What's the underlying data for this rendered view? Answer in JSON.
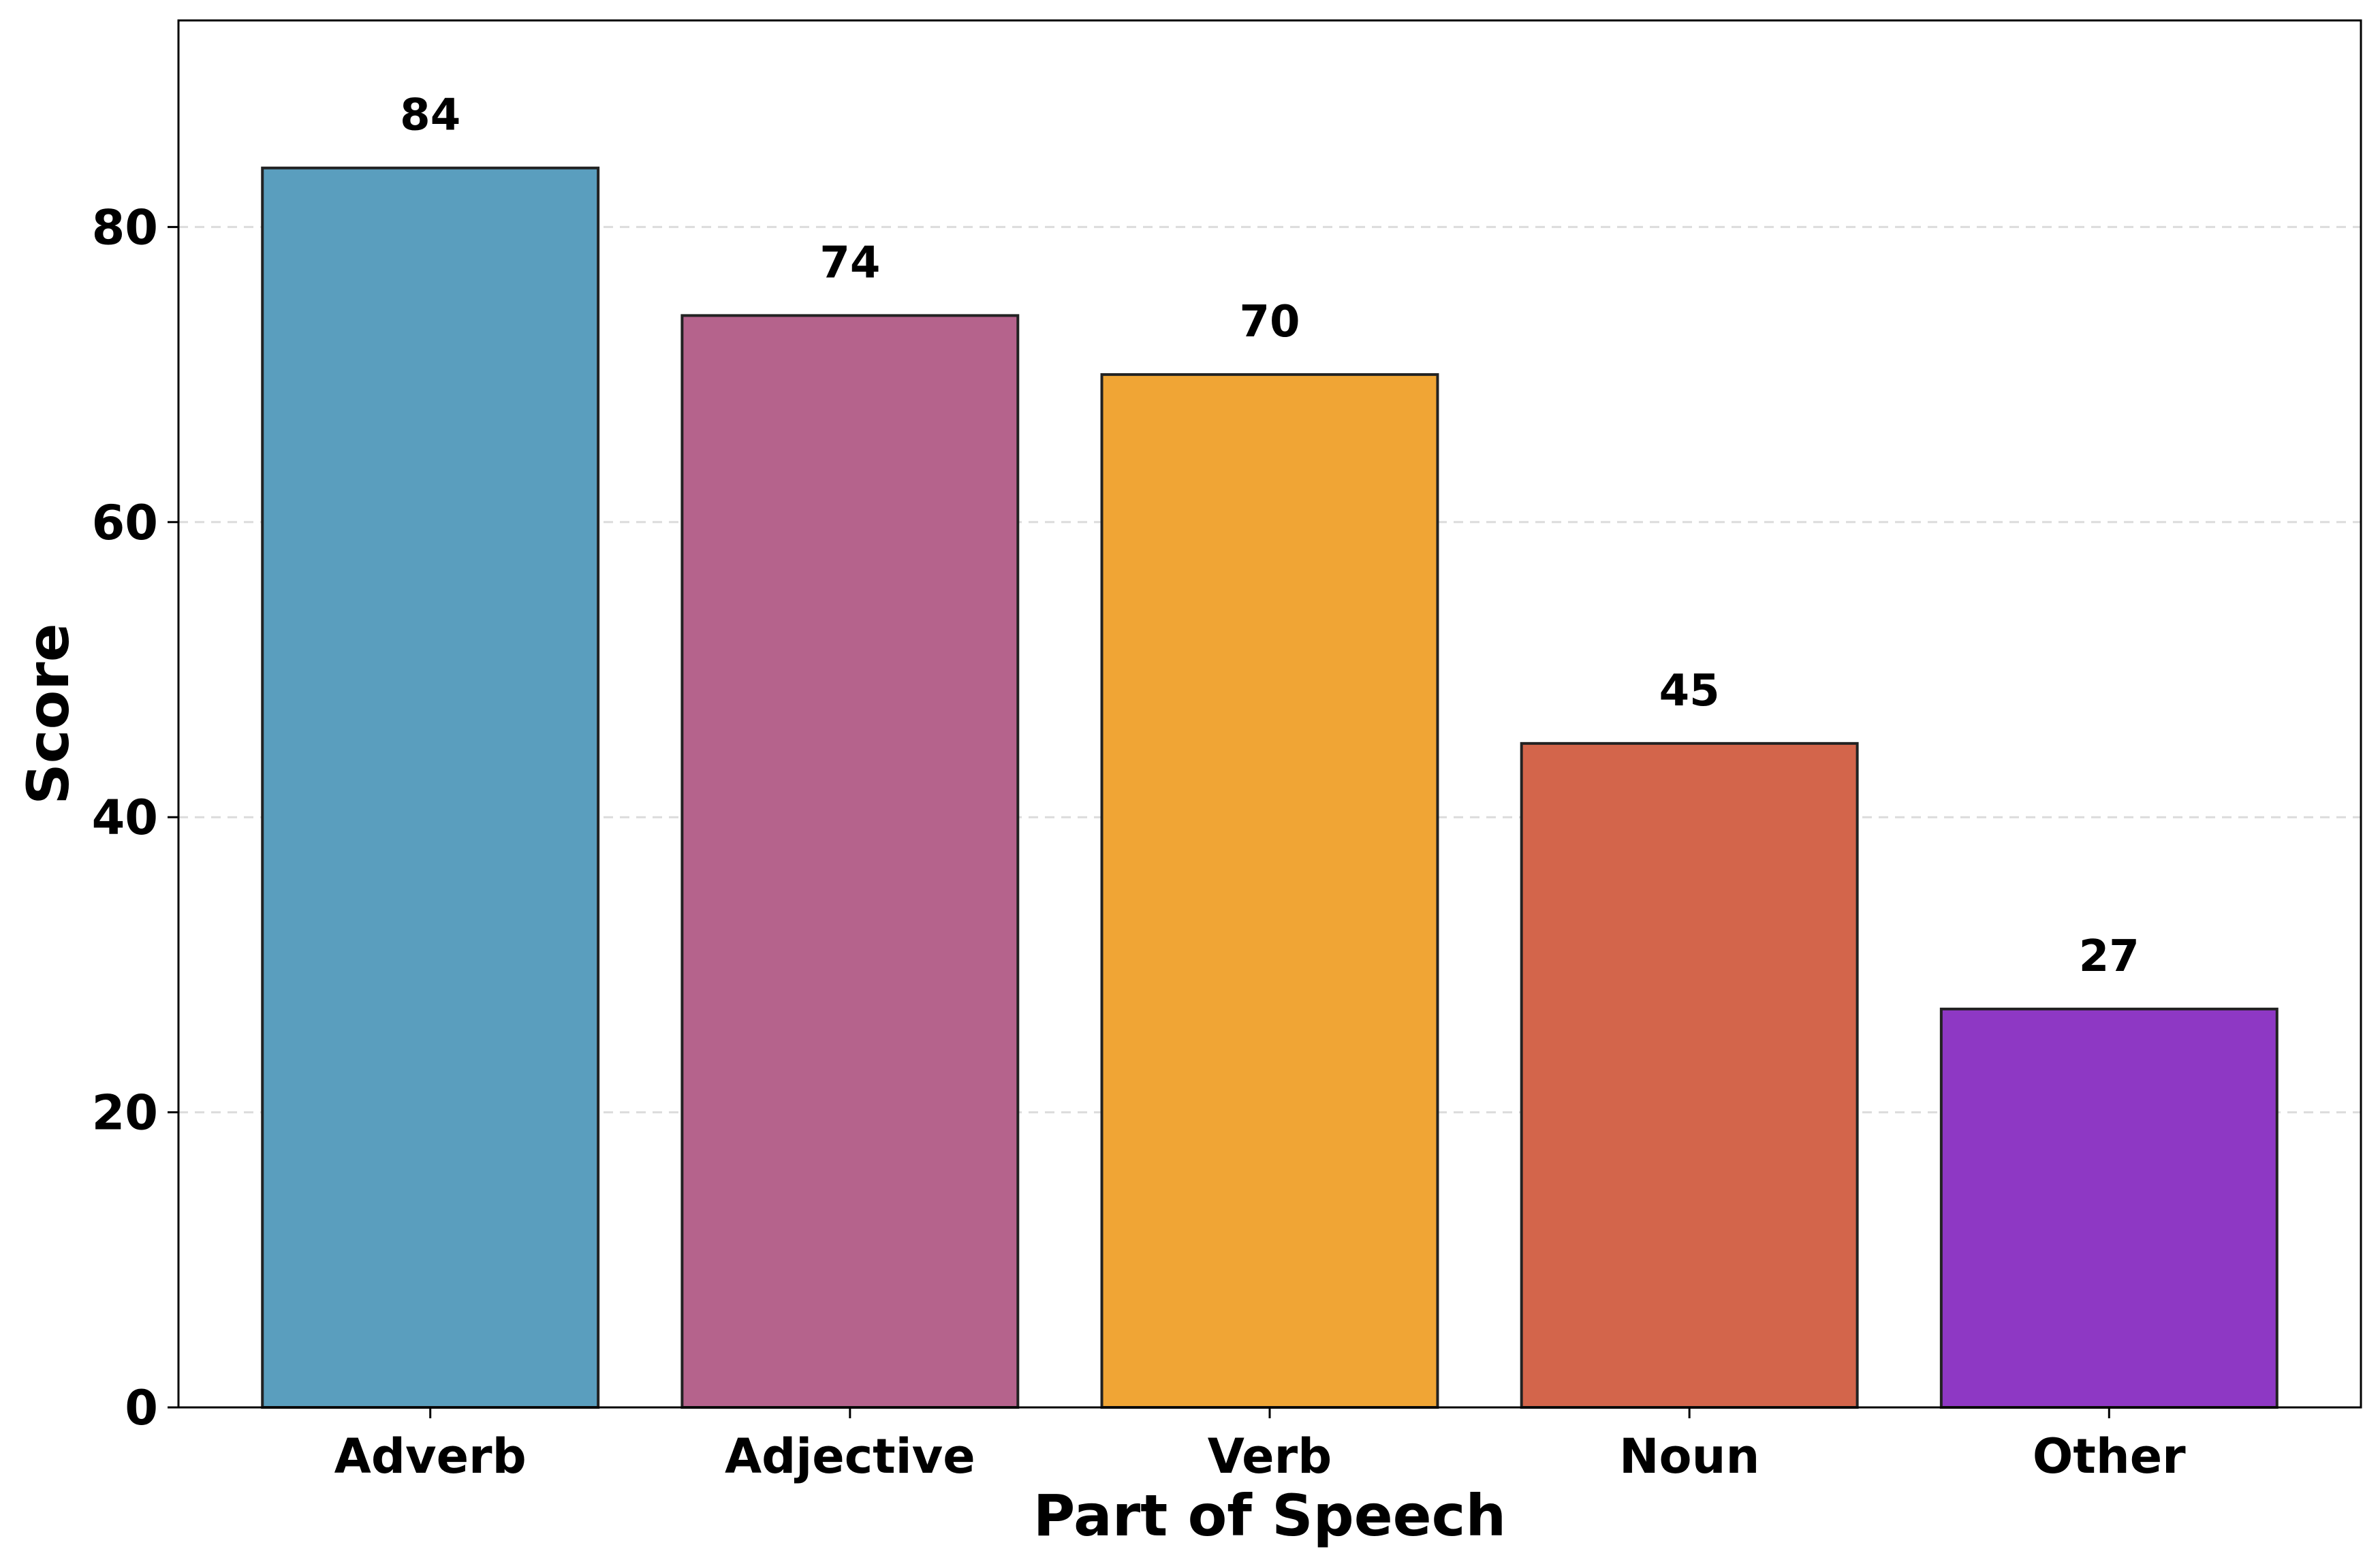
{
  "chart_data": {
    "type": "bar",
    "title": "",
    "xlabel": "Part of Speech",
    "ylabel": "Score",
    "categories": [
      "Adverb",
      "Adjective",
      "Verb",
      "Noun",
      "Other"
    ],
    "values": [
      84,
      74,
      70,
      45,
      27
    ],
    "data_labels": [
      "84",
      "74",
      "70",
      "45",
      "27"
    ],
    "colors": [
      "#5a9ebe",
      "#b5638c",
      "#f0a535",
      "#d3654b",
      "#8e38c4"
    ],
    "edge_color": "#222222",
    "ylim": [
      0,
      94
    ],
    "yticks": [
      0,
      20,
      40,
      60,
      80
    ],
    "ytick_labels": [
      "0",
      "20",
      "40",
      "60",
      "80"
    ],
    "grid": "horizontal dashed",
    "legend": "none"
  }
}
